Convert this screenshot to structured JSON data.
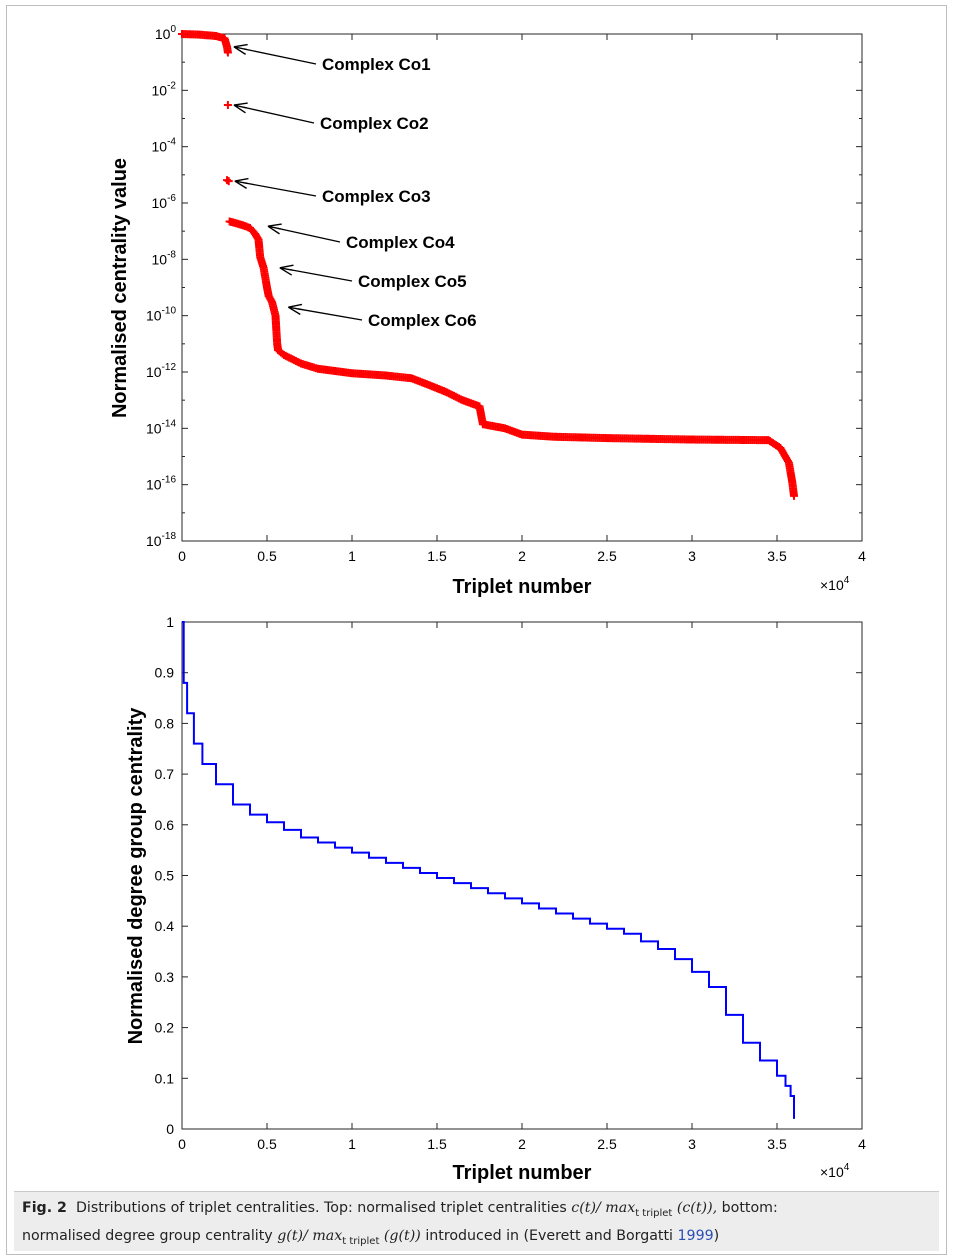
{
  "chart_data": [
    {
      "type": "scatter",
      "marker": "+",
      "color": "#ff0000",
      "xlabel": "Triplet number",
      "ylabel": "Normalised centrality value",
      "x_multiplier": "×10",
      "x_multiplier_exp": "4",
      "xlim": [
        0,
        40000
      ],
      "ylim": [
        1e-18,
        1
      ],
      "yscale": "log",
      "xticks": [
        0,
        5000,
        10000,
        15000,
        20000,
        25000,
        30000,
        35000,
        40000
      ],
      "xtick_labels": [
        "0",
        "0.5",
        "1",
        "1.5",
        "2",
        "2.5",
        "3",
        "3.5",
        "4"
      ],
      "yticks": [
        {
          "base": "10",
          "exp": "0",
          "value": 1
        },
        {
          "base": "10",
          "exp": "-2",
          "value": 0.01
        },
        {
          "base": "10",
          "exp": "-4",
          "value": 0.0001
        },
        {
          "base": "10",
          "exp": "-6",
          "value": 1e-06
        },
        {
          "base": "10",
          "exp": "-8",
          "value": 1e-08
        },
        {
          "base": "10",
          "exp": "-10",
          "value": 1e-10
        },
        {
          "base": "10",
          "exp": "-12",
          "value": 1e-12
        },
        {
          "base": "10",
          "exp": "-14",
          "value": 1e-14
        },
        {
          "base": "10",
          "exp": "-16",
          "value": 1e-16
        },
        {
          "base": "10",
          "exp": "-18",
          "value": 1e-18
        }
      ],
      "series": [
        {
          "points": [
            [
              0,
              1
            ],
            [
              1000,
              0.95
            ],
            [
              2000,
              0.85
            ],
            [
              2500,
              0.7
            ],
            [
              2650,
              0.35
            ],
            [
              2700,
              0.22
            ],
            [
              2700,
              0.003
            ],
            [
              2650,
              6.5e-06
            ],
            [
              2750,
              6e-06
            ],
            [
              2800,
              2.2e-07
            ],
            [
              3200,
              1.9e-07
            ],
            [
              3600,
              1.6e-07
            ],
            [
              4000,
              1.3e-07
            ],
            [
              4300,
              8e-08
            ],
            [
              4500,
              5e-08
            ],
            [
              4600,
              1.2e-08
            ],
            [
              4800,
              5e-09
            ],
            [
              5000,
              1e-09
            ],
            [
              5100,
              5e-10
            ],
            [
              5300,
              3e-10
            ],
            [
              5500,
              1e-10
            ],
            [
              5550,
              3e-11
            ],
            [
              5600,
              1e-11
            ],
            [
              5650,
              6e-12
            ],
            [
              6000,
              4e-12
            ],
            [
              7000,
              2e-12
            ],
            [
              8000,
              1.3e-12
            ],
            [
              10000,
              9e-13
            ],
            [
              12000,
              7.5e-13
            ],
            [
              13500,
              6e-13
            ],
            [
              14500,
              3.5e-13
            ],
            [
              15500,
              2e-13
            ],
            [
              16500,
              1e-13
            ],
            [
              17500,
              6e-14
            ],
            [
              17700,
              1.4e-14
            ],
            [
              19000,
              1e-14
            ],
            [
              20000,
              6e-15
            ],
            [
              22000,
              5e-15
            ],
            [
              25000,
              4.5e-15
            ],
            [
              30000,
              4e-15
            ],
            [
              34500,
              3.8e-15
            ],
            [
              35200,
              2e-15
            ],
            [
              35700,
              6e-16
            ],
            [
              35900,
              1.2e-16
            ],
            [
              36000,
              4e-17
            ]
          ]
        }
      ],
      "annotations": [
        {
          "text": "Complex Co1",
          "x": 2700,
          "y": 0.35
        },
        {
          "text": "Complex Co2",
          "x": 2700,
          "y": 0.003
        },
        {
          "text": "Complex Co3",
          "x": 2750,
          "y": 6e-06
        },
        {
          "text": "Complex Co4",
          "x": 4700,
          "y": 1.5e-07
        },
        {
          "text": "Complex Co5",
          "x": 5400,
          "y": 5e-09
        },
        {
          "text": "Complex Co6",
          "x": 5900,
          "y": 2e-10
        }
      ]
    },
    {
      "type": "line",
      "line_style": "step",
      "color": "#0000ff",
      "xlabel": "Triplet number",
      "ylabel": "Normalised degree group centrality",
      "x_multiplier": "×10",
      "x_multiplier_exp": "4",
      "xlim": [
        0,
        40000
      ],
      "ylim": [
        0,
        1
      ],
      "xticks": [
        0,
        5000,
        10000,
        15000,
        20000,
        25000,
        30000,
        35000,
        40000
      ],
      "xtick_labels": [
        "0",
        "0.5",
        "1",
        "1.5",
        "2",
        "2.5",
        "3",
        "3.5",
        "4"
      ],
      "yticks": [
        0,
        0.1,
        0.2,
        0.3,
        0.4,
        0.5,
        0.6,
        0.7,
        0.8,
        0.9,
        1
      ],
      "ytick_labels": [
        "0",
        "0.1",
        "0.2",
        "0.3",
        "0.4",
        "0.5",
        "0.6",
        "0.7",
        "0.8",
        "0.9",
        "1"
      ],
      "series": [
        {
          "x": [
            0,
            100,
            300,
            700,
            1200,
            2000,
            3000,
            4000,
            5000,
            6000,
            7000,
            8000,
            9000,
            10000,
            11000,
            12000,
            13000,
            14000,
            15000,
            16000,
            17000,
            18000,
            19000,
            20000,
            21000,
            22000,
            23000,
            24000,
            25000,
            26000,
            27000,
            28000,
            29000,
            30000,
            31000,
            32000,
            33000,
            34000,
            35000,
            35500,
            35800,
            36000
          ],
          "y": [
            1.0,
            0.88,
            0.82,
            0.76,
            0.72,
            0.68,
            0.64,
            0.62,
            0.605,
            0.59,
            0.575,
            0.565,
            0.555,
            0.545,
            0.535,
            0.525,
            0.515,
            0.505,
            0.495,
            0.485,
            0.475,
            0.465,
            0.455,
            0.445,
            0.435,
            0.425,
            0.415,
            0.405,
            0.395,
            0.385,
            0.37,
            0.355,
            0.335,
            0.31,
            0.28,
            0.225,
            0.17,
            0.135,
            0.105,
            0.085,
            0.065,
            0.02
          ]
        }
      ]
    }
  ],
  "caption": {
    "label": "Fig. 2",
    "line1_text": "Distributions of triplet centralities. Top: normalised triplet centralities",
    "line1_math": "c(t)/ max",
    "line1_sub": "t triplet",
    "line1_math2": "(c(t)),",
    "line1_end": "bottom:",
    "line2_start": "normalised degree group centrality",
    "line2_math": "g(t)/ max",
    "line2_sub": "t triplet",
    "line2_math2": "(g(t))",
    "line2_text": "introduced in (Everett and Borgatti",
    "line2_cite": "1999",
    "line2_end": ")"
  }
}
